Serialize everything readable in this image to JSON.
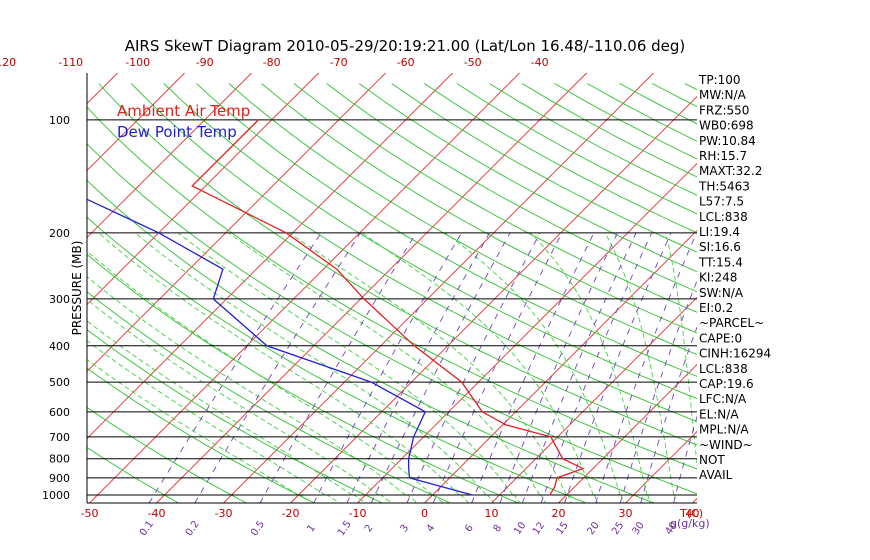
{
  "chart_data": {
    "type": "skewt",
    "title": "AIRS SkewT Diagram 2010-05-29/20:19:21.00 (Lat/Lon 16.48/-110.06 deg)",
    "ylabel": "PRESSURE (MB)",
    "xlabel_temp": "T(C)",
    "xlabel_mix": "g(g/kg)",
    "legend": [
      {
        "name": "Ambient Air Temp",
        "color": "#e02020"
      },
      {
        "name": "Dew Point Temp",
        "color": "#2020d0"
      }
    ],
    "pressure_ticks": [
      100,
      200,
      300,
      400,
      500,
      600,
      700,
      800,
      900,
      1000
    ],
    "bottom_temp_ticks": [
      -50,
      -40,
      -30,
      -20,
      -10,
      0,
      10,
      20,
      30,
      40
    ],
    "top_temp_ticks": [
      -120,
      -110,
      -100,
      -90,
      -80,
      -70,
      -60,
      -50,
      -40
    ],
    "mixing_ratio_labels": [
      "0.1",
      "0.2",
      "0.5",
      "1",
      "1.5",
      "2",
      "3",
      "4",
      "6",
      "8",
      "10",
      "12",
      "15",
      "20",
      "25",
      "30",
      "40"
    ],
    "temperature_profile": [
      {
        "p": 100,
        "t": -82.0
      },
      {
        "p": 150,
        "t": -82.0
      },
      {
        "p": 200,
        "t": -61.0
      },
      {
        "p": 250,
        "t": -48.0
      },
      {
        "p": 300,
        "t": -39.5
      },
      {
        "p": 400,
        "t": -25.0
      },
      {
        "p": 500,
        "t": -12.5
      },
      {
        "p": 600,
        "t": -5.0
      },
      {
        "p": 650,
        "t": 0.5
      },
      {
        "p": 700,
        "t": 9.0
      },
      {
        "p": 800,
        "t": 14.0
      },
      {
        "p": 850,
        "t": 18.5
      },
      {
        "p": 900,
        "t": 16.0
      },
      {
        "p": 950,
        "t": 17.0
      },
      {
        "p": 1000,
        "t": 17.5
      }
    ],
    "dewpoint_profile": [
      {
        "p": 100,
        "t": -109.0
      },
      {
        "p": 150,
        "t": -102.0
      },
      {
        "p": 200,
        "t": -80.0
      },
      {
        "p": 250,
        "t": -65.0
      },
      {
        "p": 300,
        "t": -62.0
      },
      {
        "p": 400,
        "t": -47.0
      },
      {
        "p": 500,
        "t": -26.0
      },
      {
        "p": 600,
        "t": -13.5
      },
      {
        "p": 700,
        "t": -11.5
      },
      {
        "p": 800,
        "t": -9.0
      },
      {
        "p": 850,
        "t": -7.5
      },
      {
        "p": 900,
        "t": -6.0
      },
      {
        "p": 1000,
        "t": 6.0
      }
    ],
    "indices": [
      "TP:100",
      "MW:N/A",
      "FRZ:550",
      "WB0:698",
      "PW:10.84",
      "RH:15.7",
      "MAXT:32.2",
      "TH:5463",
      "L57:7.5",
      "LCL:838",
      "LI:19.4",
      "SI:16.6",
      "TT:15.4",
      "KI:248",
      "SW:N/A",
      "EI:0.2",
      "~PARCEL~",
      "CAPE:0",
      "CINH:16294",
      "LCL:838",
      "CAP:19.6",
      "LFC:N/A",
      "EL:N/A",
      "MPL:N/A",
      "~WIND~",
      "NOT",
      "AVAIL"
    ],
    "ylim": [
      100,
      1000
    ],
    "xlim": [
      -50,
      45
    ]
  }
}
